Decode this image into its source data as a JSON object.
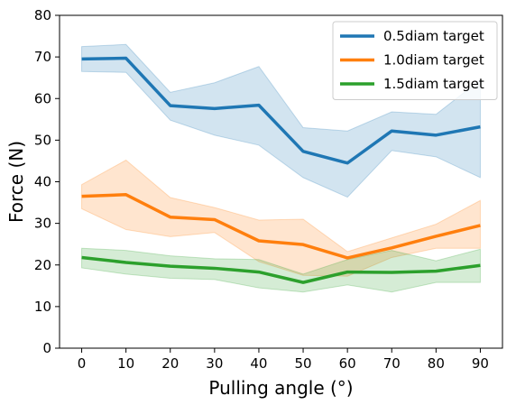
{
  "chart_data": {
    "type": "line",
    "title": "",
    "xlabel": "Pulling angle (°)",
    "ylabel": "Force (N)",
    "xlim": [
      -5,
      95
    ],
    "ylim": [
      0,
      80
    ],
    "x_ticks": [
      0,
      10,
      20,
      30,
      40,
      50,
      60,
      70,
      80,
      90
    ],
    "y_ticks": [
      0,
      10,
      20,
      30,
      40,
      50,
      60,
      70,
      80
    ],
    "x_tick_labels": [
      "0",
      "10",
      "20",
      "30",
      "40",
      "50",
      "60",
      "70",
      "80",
      "90"
    ],
    "y_tick_labels": [
      "0",
      "10",
      "20",
      "30",
      "40",
      "50",
      "60",
      "70",
      "80"
    ],
    "x": [
      0,
      10,
      20,
      30,
      40,
      50,
      60,
      70,
      80,
      90
    ],
    "grid": false,
    "legend_position": "top-right",
    "series": [
      {
        "name": "0.5diam target",
        "color": "#1f77b4",
        "band_color": "#1f77b4",
        "values": [
          69.5,
          69.7,
          58.3,
          57.6,
          58.4,
          47.3,
          44.5,
          52.2,
          51.2,
          53.2
        ],
        "lower": [
          66.5,
          66.3,
          54.8,
          51.2,
          48.8,
          41.0,
          36.3,
          47.5,
          46.0,
          41.0
        ],
        "upper": [
          72.5,
          73.0,
          61.5,
          63.8,
          67.7,
          53.0,
          52.2,
          56.8,
          56.2,
          64.5
        ]
      },
      {
        "name": "1.0diam target",
        "color": "#ff7f0e",
        "band_color": "#ff7f0e",
        "values": [
          36.5,
          36.9,
          31.5,
          30.9,
          25.8,
          24.9,
          21.7,
          24.1,
          26.9,
          29.5
        ],
        "lower": [
          33.5,
          28.5,
          26.8,
          27.8,
          20.8,
          17.5,
          17.3,
          21.8,
          24.0,
          24.0
        ],
        "upper": [
          39.3,
          45.2,
          36.2,
          33.8,
          30.8,
          31.0,
          23.2,
          26.5,
          29.8,
          35.5
        ]
      },
      {
        "name": "1.5diam target",
        "color": "#2ca02c",
        "band_color": "#2ca02c",
        "values": [
          21.8,
          20.6,
          19.7,
          19.2,
          18.3,
          15.8,
          18.3,
          18.2,
          18.5,
          19.9
        ],
        "lower": [
          19.3,
          17.8,
          16.8,
          16.5,
          14.5,
          13.5,
          15.2,
          13.5,
          15.8,
          15.8
        ],
        "upper": [
          24.0,
          23.5,
          22.2,
          21.5,
          21.3,
          17.8,
          21.3,
          23.5,
          21.0,
          23.8
        ]
      }
    ]
  }
}
